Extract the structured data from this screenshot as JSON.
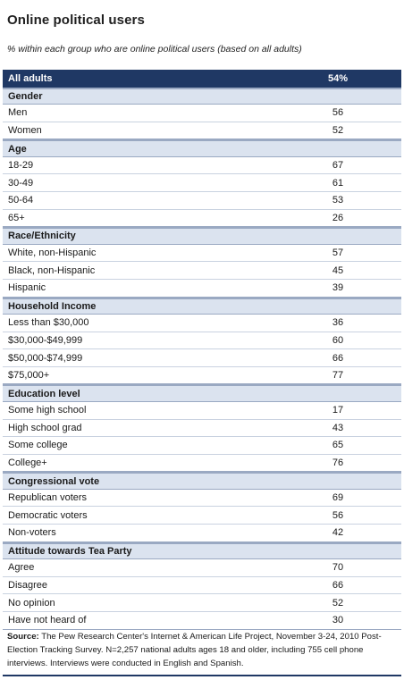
{
  "title": "Online political users",
  "subtitle": "% within each group who are online political users (based on all adults)",
  "all_adults": {
    "label": "All adults",
    "value": "54%"
  },
  "sections": [
    {
      "name": "Gender",
      "rows": [
        {
          "label": "Men",
          "value": "56"
        },
        {
          "label": "Women",
          "value": "52"
        }
      ]
    },
    {
      "name": "Age",
      "rows": [
        {
          "label": "18-29",
          "value": "67"
        },
        {
          "label": "30-49",
          "value": "61"
        },
        {
          "label": "50-64",
          "value": "53"
        },
        {
          "label": "65+",
          "value": "26"
        }
      ]
    },
    {
      "name": "Race/Ethnicity",
      "rows": [
        {
          "label": "White, non-Hispanic",
          "value": "57"
        },
        {
          "label": "Black, non-Hispanic",
          "value": "45"
        },
        {
          "label": "Hispanic",
          "value": "39"
        }
      ]
    },
    {
      "name": "Household Income",
      "rows": [
        {
          "label": "Less than $30,000",
          "value": "36"
        },
        {
          "label": "$30,000-$49,999",
          "value": "60"
        },
        {
          "label": "$50,000-$74,999",
          "value": "66"
        },
        {
          "label": "$75,000+",
          "value": "77"
        }
      ]
    },
    {
      "name": "Education level",
      "rows": [
        {
          "label": "Some high school",
          "value": "17"
        },
        {
          "label": "High school grad",
          "value": "43"
        },
        {
          "label": "Some college",
          "value": "65"
        },
        {
          "label": "College+",
          "value": "76"
        }
      ]
    },
    {
      "name": "Congressional vote",
      "rows": [
        {
          "label": "Republican voters",
          "value": "69"
        },
        {
          "label": "Democratic voters",
          "value": "56"
        },
        {
          "label": "Non-voters",
          "value": "42"
        }
      ]
    },
    {
      "name": "Attitude towards Tea Party",
      "rows": [
        {
          "label": "Agree",
          "value": "70"
        },
        {
          "label": "Disagree",
          "value": "66"
        },
        {
          "label": "No opinion",
          "value": "52"
        },
        {
          "label": "Have not heard of",
          "value": "30"
        }
      ]
    }
  ],
  "source": {
    "label": "Source:",
    "text": "The Pew Research Center's Internet & American Life Project, November 3-24, 2010 Post-Election Tracking Survey. N=2,257 national adults ages 18 and older, including 755 cell phone interviews. Interviews were conducted in English and Spanish."
  }
}
